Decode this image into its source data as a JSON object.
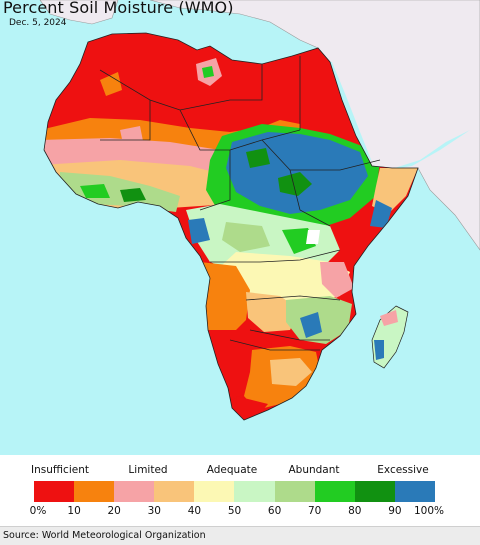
{
  "map": {
    "title": "Percent Soil Moisture (WMO)",
    "date": "Dec. 5, 2024",
    "colors": {
      "ocean": "#b7f4f7",
      "non_analyzed_land": "#efeaf0",
      "border": "#222222"
    }
  },
  "legend": {
    "categories": [
      {
        "label": "Insufficient"
      },
      {
        "label": "Limited"
      },
      {
        "label": "Adequate"
      },
      {
        "label": "Abundant"
      },
      {
        "label": "Excessive"
      }
    ],
    "bins": [
      {
        "from": 0,
        "to": 10,
        "color": "#ee1111"
      },
      {
        "from": 10,
        "to": 20,
        "color": "#f7820e"
      },
      {
        "from": 20,
        "to": 30,
        "color": "#f6a3a6"
      },
      {
        "from": 30,
        "to": 40,
        "color": "#f9c47a"
      },
      {
        "from": 40,
        "to": 50,
        "color": "#fcf8b4"
      },
      {
        "from": 50,
        "to": 60,
        "color": "#c9f6c4"
      },
      {
        "from": 60,
        "to": 70,
        "color": "#aedb8b"
      },
      {
        "from": 70,
        "to": 80,
        "color": "#22cc22"
      },
      {
        "from": 80,
        "to": 90,
        "color": "#119111"
      },
      {
        "from": 90,
        "to": 100,
        "color": "#2a7ab8"
      }
    ],
    "ticks": [
      "0%",
      "10",
      "20",
      "30",
      "40",
      "50",
      "60",
      "70",
      "80",
      "90",
      "100%"
    ]
  },
  "footer": {
    "source": "Source: World Meteorological Organization"
  }
}
